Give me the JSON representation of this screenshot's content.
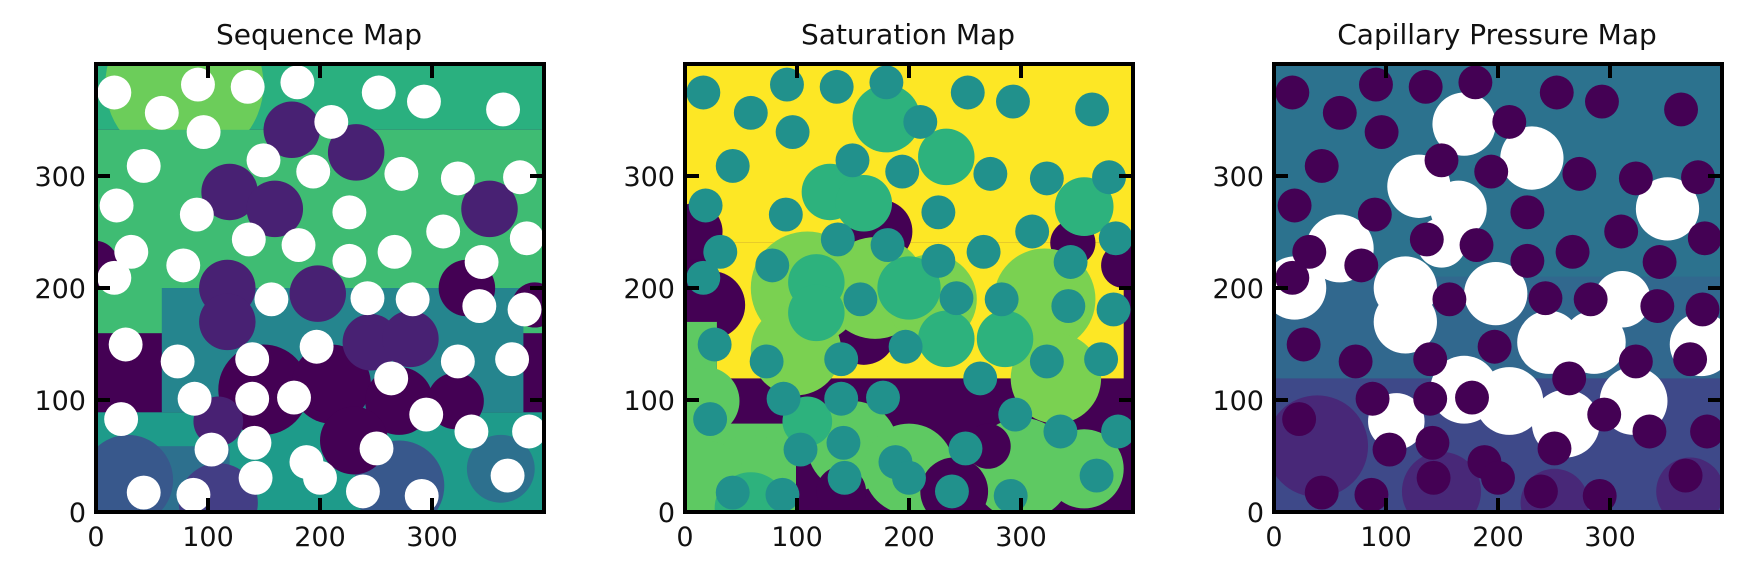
{
  "figure": {
    "panels": [
      "Sequence Map",
      "Saturation Map",
      "Capillary Pressure Map"
    ]
  },
  "chart_data": [
    {
      "type": "heatmap",
      "title": "Sequence Map",
      "xlabel": "",
      "ylabel": "",
      "xlim": [
        0,
        400
      ],
      "ylim": [
        0,
        400
      ],
      "xticks": [
        0,
        100,
        200,
        300
      ],
      "yticks": [
        0,
        100,
        200,
        300
      ],
      "colormap": "viridis",
      "legend": "none",
      "grid": false,
      "colors": {
        "seq_1": "#440154",
        "seq_2": "#482173",
        "seq_3": "#433e85",
        "seq_4": "#38588c",
        "seq_5": "#2d708e",
        "seq_6": "#25858e",
        "seq_7": "#1e9b8a",
        "seq_8": "#2ab07f",
        "seq_9": "#3fbc73",
        "seq_10": "#6ccd5a",
        "solid": "#ffffff"
      }
    },
    {
      "type": "heatmap",
      "title": "Saturation Map",
      "xlabel": "",
      "ylabel": "",
      "xlim": [
        0,
        400
      ],
      "ylim": [
        0,
        400
      ],
      "xticks": [
        0,
        100,
        200,
        300
      ],
      "yticks": [
        0,
        100,
        200,
        300
      ],
      "colormap": "viridis",
      "legend": "none",
      "grid": false,
      "colors": {
        "sat_0": "#440154",
        "sat_1": "#21918c",
        "sat_2": "#2db27d",
        "sat_3": "#5ec962",
        "sat_4": "#7ad151",
        "sat_5": "#fde725"
      }
    },
    {
      "type": "heatmap",
      "title": "Capillary Pressure Map",
      "xlabel": "",
      "ylabel": "",
      "xlim": [
        0,
        400
      ],
      "ylim": [
        0,
        400
      ],
      "xticks": [
        0,
        100,
        200,
        300
      ],
      "yticks": [
        0,
        100,
        200,
        300
      ],
      "colormap": "viridis",
      "legend": "none",
      "grid": false,
      "colors": {
        "pc_1": "#440154",
        "pc_2": "#482878",
        "pc_3": "#3e4989",
        "pc_4": "#31688e",
        "pc_5": "#2c728e",
        "masked": "#ffffff"
      }
    }
  ]
}
